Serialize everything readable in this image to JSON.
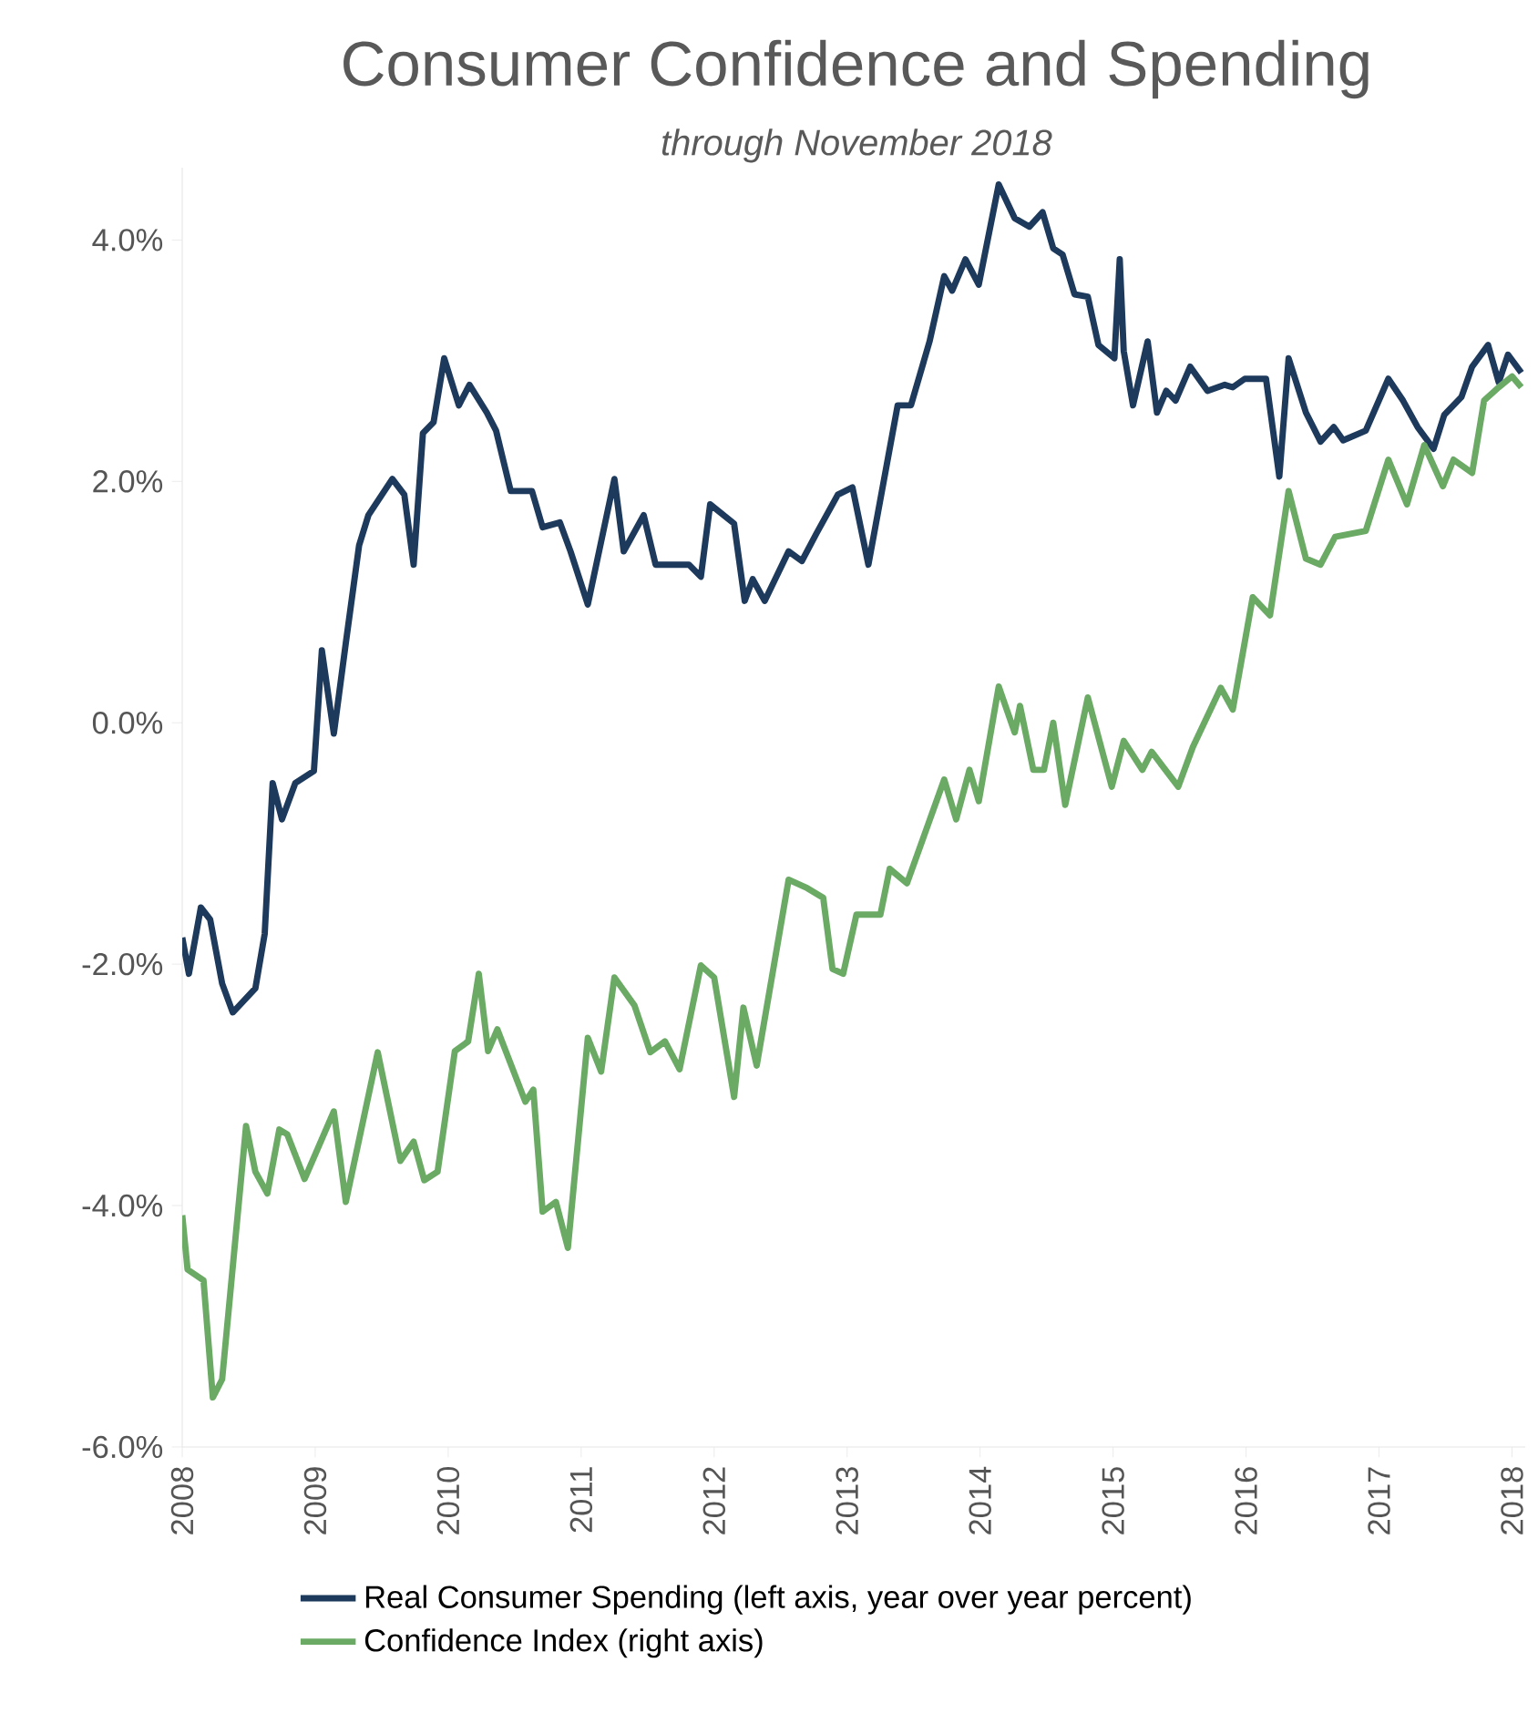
{
  "chart_data": {
    "type": "line",
    "title": "Consumer Confidence and Spending",
    "subtitle": "through November 2018",
    "xlim": [
      2008,
      2018.1
    ],
    "xticks": [
      2008,
      2009,
      2010,
      2011,
      2012,
      2013,
      2014,
      2015,
      2016,
      2017,
      2018
    ],
    "ylim": [
      -6,
      4.6
    ],
    "yticks": [
      {
        "value": -6,
        "label": "-6.0%"
      },
      {
        "value": -4,
        "label": "-4.0%"
      },
      {
        "value": -2,
        "label": "-2.0%"
      },
      {
        "value": 0,
        "label": "0.0%"
      },
      {
        "value": 2,
        "label": "2.0%"
      },
      {
        "value": 4,
        "label": "4.0%"
      }
    ],
    "legend": "bottom",
    "grid": false,
    "marker": "none",
    "line_style": "solid",
    "series": [
      {
        "name": "Real Consumer Spending (left axis, year over year percent)",
        "color": "#1d3a5c",
        "x": [
          2008.0,
          2008.05,
          2008.14,
          2008.21,
          2008.3,
          2008.38,
          2008.55,
          2008.62,
          2008.68,
          2008.75,
          2008.85,
          2008.99,
          2009.05,
          2009.14,
          2009.23,
          2009.33,
          2009.4,
          2009.58,
          2009.67,
          2009.74,
          2009.81,
          2009.89,
          2009.97,
          2010.08,
          2010.16,
          2010.29,
          2010.36,
          2010.47,
          2010.63,
          2010.71,
          2010.84,
          2010.92,
          2011.05,
          2011.25,
          2011.32,
          2011.47,
          2011.56,
          2011.81,
          2011.9,
          2011.97,
          2012.15,
          2012.23,
          2012.29,
          2012.38,
          2012.56,
          2012.66,
          2012.77,
          2012.93,
          2013.04,
          2013.16,
          2013.38,
          2013.48,
          2013.62,
          2013.73,
          2013.79,
          2013.89,
          2013.99,
          2014.14,
          2014.26,
          2014.37,
          2014.47,
          2014.55,
          2014.62,
          2014.71,
          2014.81,
          2014.89,
          2015.01,
          2015.05,
          2015.08,
          2015.15,
          2015.26,
          2015.33,
          2015.4,
          2015.47,
          2015.58,
          2015.71,
          2015.84,
          2015.9,
          2015.99,
          2016.15,
          2016.25,
          2016.32,
          2016.45,
          2016.56,
          2016.66,
          2016.73,
          2016.9,
          2017.07,
          2017.18,
          2017.29,
          2017.41,
          2017.49,
          2017.62,
          2017.7,
          2017.82,
          2017.9,
          2017.97,
          2018.07
        ],
        "values": [
          -1.78,
          -2.08,
          -1.53,
          -1.63,
          -2.16,
          -2.4,
          -2.2,
          -1.75,
          -0.5,
          -0.8,
          -0.5,
          -0.4,
          0.6,
          -0.09,
          0.66,
          1.47,
          1.72,
          2.02,
          1.89,
          1.31,
          2.4,
          2.49,
          3.02,
          2.63,
          2.8,
          2.57,
          2.42,
          1.92,
          1.92,
          1.62,
          1.66,
          1.42,
          0.98,
          2.02,
          1.42,
          1.72,
          1.31,
          1.31,
          1.21,
          1.81,
          1.65,
          1.01,
          1.19,
          1.01,
          1.42,
          1.34,
          1.57,
          1.89,
          1.95,
          1.31,
          2.63,
          2.63,
          3.16,
          3.7,
          3.58,
          3.84,
          3.63,
          4.46,
          4.18,
          4.11,
          4.23,
          3.93,
          3.88,
          3.55,
          3.53,
          3.13,
          3.02,
          3.84,
          3.08,
          2.63,
          3.16,
          2.57,
          2.75,
          2.67,
          2.95,
          2.75,
          2.8,
          2.78,
          2.85,
          2.85,
          2.04,
          3.02,
          2.57,
          2.33,
          2.45,
          2.34,
          2.42,
          2.85,
          2.67,
          2.45,
          2.27,
          2.55,
          2.7,
          2.95,
          3.13,
          2.82,
          3.05,
          2.9
        ]
      },
      {
        "name": "Confidence Index (right axis)",
        "color": "#6aaa64",
        "x": [
          2008.0,
          2008.04,
          2008.16,
          2008.23,
          2008.3,
          2008.48,
          2008.55,
          2008.64,
          2008.73,
          2008.79,
          2008.92,
          2009.14,
          2009.23,
          2009.47,
          2009.64,
          2009.74,
          2009.82,
          2009.92,
          2010.05,
          2010.15,
          2010.23,
          2010.3,
          2010.37,
          2010.58,
          2010.64,
          2010.71,
          2010.81,
          2010.9,
          2011.05,
          2011.15,
          2011.25,
          2011.4,
          2011.52,
          2011.63,
          2011.74,
          2011.9,
          2012.0,
          2012.15,
          2012.22,
          2012.32,
          2012.56,
          2012.7,
          2012.82,
          2012.89,
          2012.97,
          2013.07,
          2013.25,
          2013.32,
          2013.45,
          2013.73,
          2013.82,
          2013.92,
          2013.99,
          2014.14,
          2014.26,
          2014.3,
          2014.4,
          2014.48,
          2014.55,
          2014.64,
          2014.81,
          2014.99,
          2015.08,
          2015.22,
          2015.29,
          2015.49,
          2015.6,
          2015.81,
          2015.9,
          2016.05,
          2016.18,
          2016.32,
          2016.45,
          2016.56,
          2016.67,
          2016.9,
          2017.07,
          2017.21,
          2017.34,
          2017.48,
          2017.56,
          2017.7,
          2017.79,
          2017.9,
          2018.0,
          2018.07
        ],
        "values": [
          -4.08,
          -4.53,
          -4.62,
          -5.59,
          -5.44,
          -3.34,
          -3.72,
          -3.9,
          -3.37,
          -3.41,
          -3.78,
          -3.22,
          -3.97,
          -2.73,
          -3.63,
          -3.47,
          -3.79,
          -3.72,
          -2.72,
          -2.64,
          -2.08,
          -2.72,
          -2.54,
          -3.14,
          -3.04,
          -4.05,
          -3.97,
          -4.35,
          -2.61,
          -2.89,
          -2.11,
          -2.34,
          -2.73,
          -2.64,
          -2.87,
          -2.01,
          -2.11,
          -3.1,
          -2.36,
          -2.84,
          -1.3,
          -1.37,
          -1.45,
          -2.04,
          -2.08,
          -1.59,
          -1.59,
          -1.21,
          -1.33,
          -0.47,
          -0.8,
          -0.39,
          -0.65,
          0.3,
          -0.08,
          0.14,
          -0.39,
          -0.39,
          0.0,
          -0.68,
          0.21,
          -0.53,
          -0.15,
          -0.39,
          -0.24,
          -0.53,
          -0.2,
          0.29,
          0.11,
          1.04,
          0.89,
          1.92,
          1.36,
          1.31,
          1.54,
          1.59,
          2.18,
          1.81,
          2.3,
          1.96,
          2.18,
          2.07,
          2.67,
          2.78,
          2.87,
          2.78
        ]
      }
    ]
  }
}
